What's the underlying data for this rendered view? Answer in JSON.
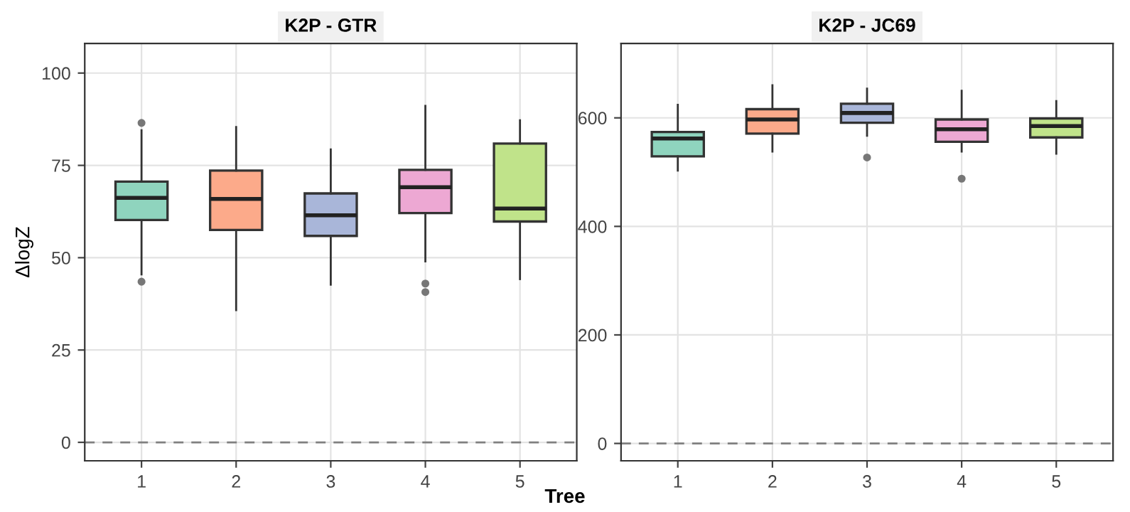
{
  "chart_data": [
    {
      "type": "box",
      "title": "K2P - GTR",
      "ylabel": "ΔlogZ",
      "categories": [
        "1",
        "2",
        "3",
        "4",
        "5"
      ],
      "colors": [
        "#8fd4be",
        "#fcaa8a",
        "#a9b6d9",
        "#eda8d3",
        "#c0e38a"
      ],
      "boxes": [
        {
          "low": 45.5,
          "q1": 60.2,
          "median": 66.2,
          "q3": 70.6,
          "high": 84.5,
          "outliers": [
            86.5,
            43.5
          ]
        },
        {
          "low": 35.8,
          "q1": 57.5,
          "median": 65.9,
          "q3": 73.6,
          "high": 85.4
        },
        {
          "low": 42.7,
          "q1": 55.9,
          "median": 61.5,
          "q3": 67.4,
          "high": 79.3
        },
        {
          "low": 49.0,
          "q1": 62.1,
          "median": 69.1,
          "q3": 73.8,
          "high": 91.1,
          "outliers": [
            43.0,
            40.7
          ]
        },
        {
          "low": 44.2,
          "q1": 59.8,
          "median": 63.3,
          "q3": 80.9,
          "high": 87.2
        }
      ],
      "ylim": [
        -5,
        108
      ],
      "yticks": [
        0,
        25,
        50,
        75,
        100
      ],
      "grid": true,
      "ref_lines": [
        {
          "axis": "y",
          "value": 0,
          "color": "#808080",
          "line_style": "dashed"
        }
      ]
    },
    {
      "type": "box",
      "title": "K2P - JC69",
      "xlabel": "Tree",
      "categories": [
        "1",
        "2",
        "3",
        "4",
        "5"
      ],
      "colors": [
        "#8fd4be",
        "#fcaa8a",
        "#a9b6d9",
        "#eda8d3",
        "#c0e38a"
      ],
      "boxes": [
        {
          "low": 503,
          "q1": 529,
          "median": 562,
          "q3": 574,
          "high": 624
        },
        {
          "low": 538,
          "q1": 571,
          "median": 597,
          "q3": 616,
          "high": 660
        },
        {
          "low": 567,
          "q1": 591,
          "median": 609,
          "q3": 626,
          "high": 654,
          "outliers": [
            527
          ]
        },
        {
          "low": 538,
          "q1": 556,
          "median": 579,
          "q3": 597,
          "high": 650,
          "outliers": [
            488
          ]
        },
        {
          "low": 534,
          "q1": 564,
          "median": 585,
          "q3": 599,
          "high": 631
        }
      ],
      "ylim": [
        -32,
        737
      ],
      "yticks": [
        0,
        200,
        400,
        600
      ],
      "grid": true,
      "ref_lines": [
        {
          "axis": "y",
          "value": 0,
          "color": "#808080",
          "line_style": "dashed"
        }
      ]
    }
  ]
}
